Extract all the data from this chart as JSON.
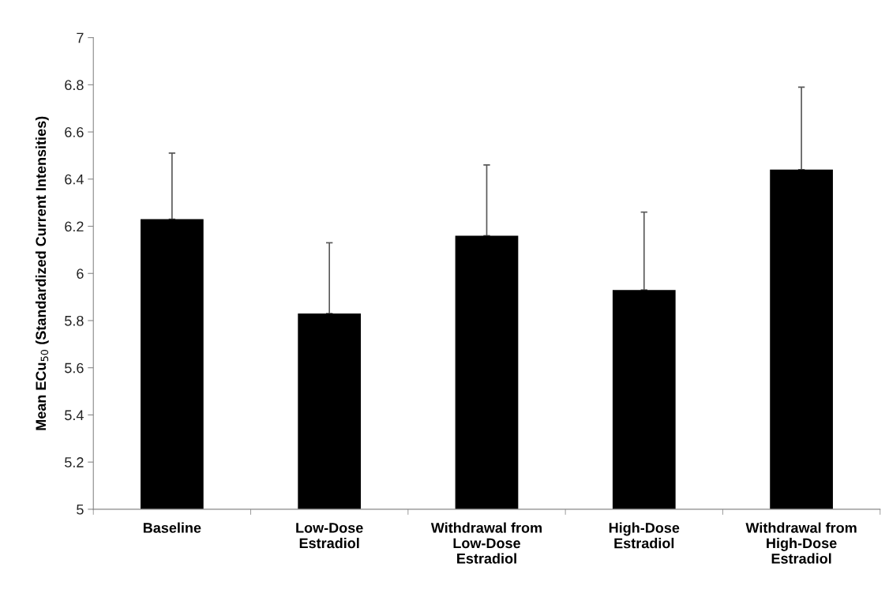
{
  "chart_data": {
    "type": "bar",
    "ylabel": "Mean ECu$_{50}$ (Standardized Current Intensities)",
    "categories": [
      "Baseline",
      "Low-Dose\nEstradiol",
      "Withdrawal from\nLow-Dose\nEstradiol",
      "High-Dose\nEstradiol",
      "Withdrawal from\nHigh-Dose\nEstradiol"
    ],
    "values": [
      6.23,
      5.83,
      6.16,
      5.93,
      6.44
    ],
    "errors": [
      [
        6.23,
        6.51
      ],
      [
        5.83,
        6.13
      ],
      [
        6.16,
        6.46
      ],
      [
        5.93,
        6.26
      ],
      [
        6.44,
        6.79
      ]
    ],
    "color": "#000000",
    "ylim": [
      5,
      7
    ],
    "yticks": [
      5,
      5.2,
      5.4,
      5.6,
      5.8,
      6,
      6.2,
      6.4,
      6.6,
      6.8,
      7
    ],
    "grid": false,
    "legend": false
  }
}
